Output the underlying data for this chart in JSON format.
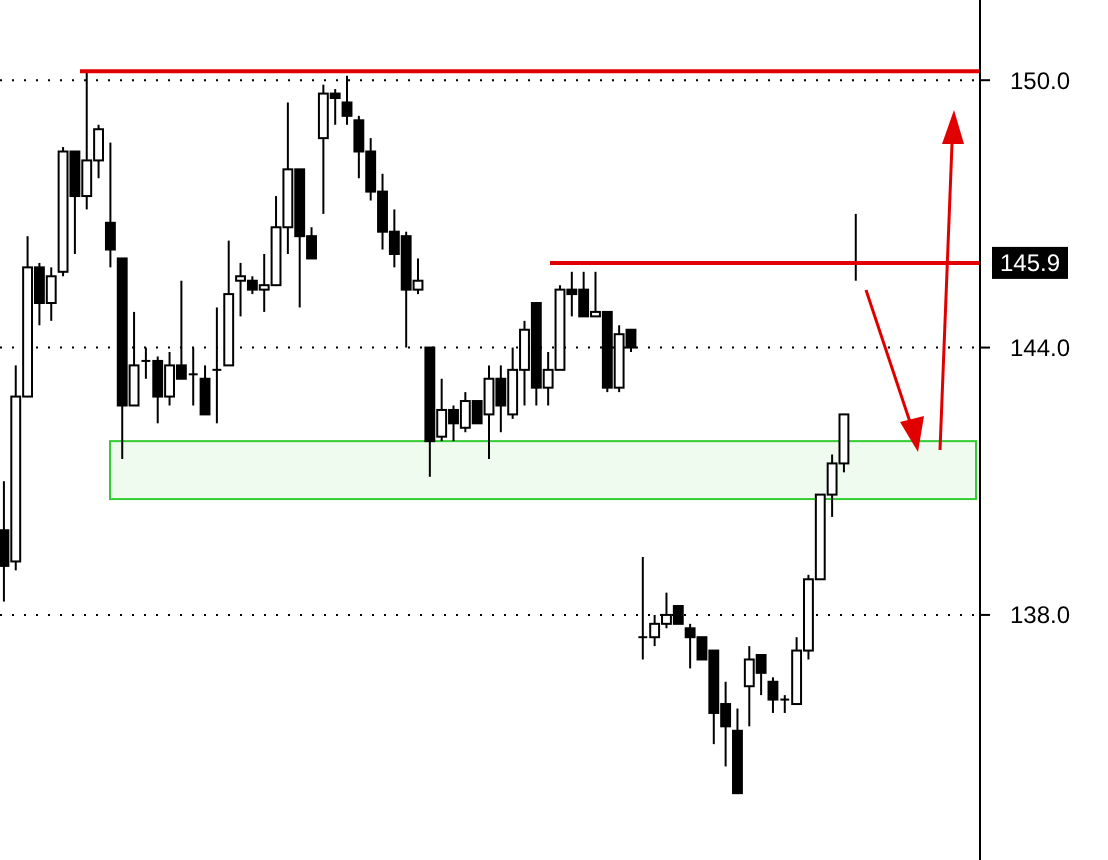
{
  "chart_data": {
    "type": "candlestick",
    "categories": [
      null,
      null,
      null,
      null,
      null,
      null,
      null,
      null,
      null,
      null,
      null,
      null,
      null,
      null,
      null,
      null,
      null,
      null,
      null,
      null,
      null,
      null,
      null,
      null,
      null,
      null,
      null,
      null,
      null,
      null,
      null,
      null,
      null,
      null,
      null,
      null,
      null,
      null,
      null,
      null,
      null,
      null,
      null,
      null,
      null,
      null,
      null,
      null,
      null,
      null,
      null,
      null,
      null,
      null,
      null,
      null,
      null,
      null,
      null,
      null,
      null,
      null,
      null,
      null,
      null,
      null,
      null,
      null,
      null,
      null,
      null,
      null,
      null,
      null,
      null,
      null,
      null,
      null,
      null,
      null,
      null,
      null,
      null
    ],
    "ohlc": [
      [
        139.9,
        141.0,
        138.3,
        139.1
      ],
      [
        139.2,
        143.6,
        139.0,
        142.9
      ],
      [
        142.9,
        146.5,
        142.9,
        145.8
      ],
      [
        145.8,
        145.9,
        144.5,
        145.0
      ],
      [
        145.0,
        145.8,
        144.6,
        145.6
      ],
      [
        145.7,
        148.5,
        145.6,
        148.4
      ],
      [
        148.4,
        148.4,
        146.1,
        147.4
      ],
      [
        147.4,
        150.2,
        147.1,
        148.2
      ],
      [
        148.2,
        149.0,
        147.8,
        148.9
      ],
      [
        146.8,
        148.6,
        145.8,
        146.2
      ],
      [
        146.0,
        146.0,
        141.5,
        142.7
      ],
      [
        142.7,
        144.8,
        142.7,
        143.6
      ],
      [
        143.7,
        144.0,
        143.3,
        143.7
      ],
      [
        143.7,
        143.8,
        142.3,
        142.9
      ],
      [
        142.9,
        143.9,
        142.7,
        143.6
      ],
      [
        143.6,
        145.5,
        143.3,
        143.3
      ],
      [
        143.4,
        144.0,
        142.7,
        143.4
      ],
      [
        143.3,
        143.6,
        142.5,
        142.5
      ],
      [
        143.5,
        144.9,
        142.3,
        143.5
      ],
      [
        143.6,
        146.4,
        143.6,
        145.2
      ],
      [
        145.5,
        145.9,
        144.7,
        145.6
      ],
      [
        145.5,
        145.6,
        145.2,
        145.3
      ],
      [
        145.3,
        146.1,
        144.8,
        145.4
      ],
      [
        145.4,
        147.4,
        145.4,
        146.7
      ],
      [
        146.7,
        149.5,
        146.1,
        148.0
      ],
      [
        148.0,
        148.0,
        144.9,
        146.5
      ],
      [
        146.5,
        146.7,
        146.0,
        146.0
      ],
      [
        148.7,
        149.9,
        147.0,
        149.7
      ],
      [
        149.7,
        149.8,
        149.0,
        149.6
      ],
      [
        149.5,
        150.1,
        149.0,
        149.2
      ],
      [
        149.1,
        149.2,
        147.8,
        148.4
      ],
      [
        148.4,
        148.7,
        147.3,
        147.5
      ],
      [
        147.5,
        147.9,
        146.2,
        146.6
      ],
      [
        146.6,
        147.1,
        145.8,
        146.1
      ],
      [
        146.5,
        146.6,
        144.0,
        145.3
      ],
      [
        145.3,
        146.0,
        145.2,
        145.5
      ],
      [
        144.0,
        144.0,
        141.1,
        141.9
      ],
      [
        142.0,
        143.3,
        141.9,
        142.6
      ],
      [
        142.6,
        142.7,
        141.9,
        142.3
      ],
      [
        142.2,
        143.0,
        142.1,
        142.8
      ],
      [
        142.8,
        142.8,
        142.3,
        142.3
      ],
      [
        142.5,
        143.6,
        141.5,
        143.3
      ],
      [
        143.3,
        143.6,
        142.1,
        142.7
      ],
      [
        142.5,
        144.0,
        142.4,
        143.5
      ],
      [
        143.5,
        144.6,
        142.7,
        144.4
      ],
      [
        145.0,
        145.0,
        142.7,
        143.1
      ],
      [
        143.1,
        143.9,
        142.7,
        143.5
      ],
      [
        143.5,
        145.4,
        143.5,
        145.3
      ],
      [
        145.3,
        145.7,
        144.7,
        145.2
      ],
      [
        145.3,
        145.7,
        144.7,
        144.7
      ],
      [
        144.7,
        145.7,
        144.7,
        144.8
      ],
      [
        144.8,
        144.8,
        143.0,
        143.1
      ],
      [
        143.1,
        144.5,
        143.0,
        144.3
      ],
      [
        144.4,
        144.4,
        143.9,
        144.0
      ],
      [
        137.5,
        139.3,
        137.0,
        137.5
      ],
      [
        137.5,
        138.0,
        137.3,
        137.8
      ],
      [
        137.8,
        138.5,
        137.7,
        138.0
      ],
      [
        138.2,
        138.2,
        137.8,
        137.8
      ],
      [
        137.7,
        137.8,
        136.8,
        137.5
      ],
      [
        137.5,
        137.5,
        137.0,
        137.0
      ],
      [
        137.2,
        137.2,
        135.1,
        135.8
      ],
      [
        136.0,
        136.5,
        134.6,
        135.5
      ],
      [
        135.4,
        135.9,
        134.0,
        134.0
      ],
      [
        136.4,
        137.3,
        135.5,
        137.0
      ],
      [
        137.1,
        137.1,
        136.2,
        136.7
      ],
      [
        136.5,
        136.6,
        135.8,
        136.1
      ],
      [
        136.1,
        136.2,
        135.8,
        136.1
      ],
      [
        136.0,
        137.5,
        136.0,
        137.2
      ],
      [
        137.2,
        138.9,
        137.0,
        138.8
      ],
      [
        138.8,
        140.7,
        138.8,
        140.7
      ],
      [
        140.7,
        141.6,
        140.2,
        141.4
      ],
      [
        141.4,
        142.5,
        141.2,
        142.5
      ],
      [
        145.9,
        147.0,
        145.5,
        145.9
      ],
      null,
      null,
      null,
      null,
      null,
      null,
      null,
      null,
      null,
      null
    ],
    "ylim": [
      132.5,
      151.8
    ],
    "yticks": [
      {
        "value": 138,
        "label": "138.0"
      },
      {
        "value": 144,
        "label": "144.0"
      },
      {
        "value": 150,
        "label": "150.0"
      }
    ],
    "grid": "y",
    "tick_labels": "y",
    "ref_lines": [
      {
        "axis": "y",
        "value": 150.2,
        "color": "#e00000"
      },
      {
        "axis": "y",
        "value": 145.9,
        "label": "145.9",
        "color": "#e00000"
      }
    ],
    "bands": [
      {
        "axis": "y",
        "from": 140.6,
        "to": 141.9,
        "color": "#33cc33"
      }
    ]
  }
}
